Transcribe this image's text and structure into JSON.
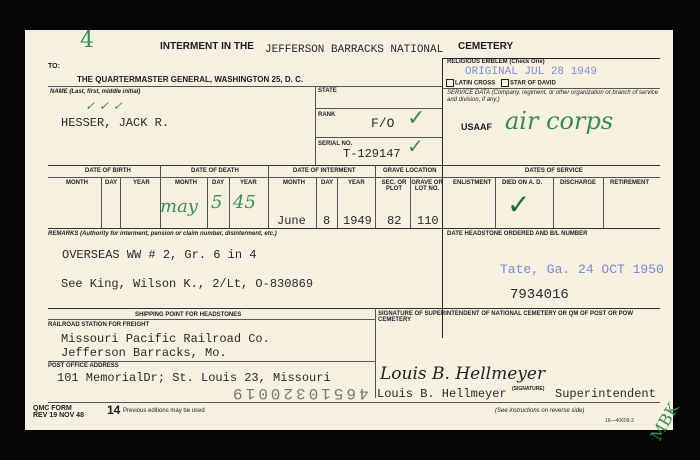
{
  "title": {
    "prefix": "INTERMENT IN THE",
    "cemetery_name": "JEFFERSON BARRACKS NATIONAL",
    "suffix": "CEMETERY",
    "mark": "4"
  },
  "to": {
    "label": "TO:",
    "addressee": "THE QUARTERMASTER GENERAL, WASHINGTON 25, D. C."
  },
  "religious_emblem": {
    "label": "RELIGIOUS EMBLEM (Check One)",
    "options": [
      "LATIN CROSS",
      "STAR OF DAVID"
    ],
    "stamp": "ORIGINAL JUL 28 1949"
  },
  "name": {
    "label": "NAME (Last, first, middle initial)",
    "value": "HESSER, JACK R."
  },
  "state": {
    "label": "STATE"
  },
  "rank": {
    "label": "RANK",
    "value": "F/O"
  },
  "serial": {
    "label": "SERIAL NO.",
    "value": "T-129147"
  },
  "service_data": {
    "label": "SERVICE DATA (Company, regiment, or other organization or branch of service and division, if any.)",
    "value": "USAAF",
    "handwritten": "air corps"
  },
  "dates": {
    "birth": {
      "label": "DATE OF BIRTH",
      "cols": [
        "MONTH",
        "DAY",
        "YEAR"
      ]
    },
    "death": {
      "label": "DATE OF DEATH",
      "cols": [
        "MONTH",
        "DAY",
        "YEAR"
      ],
      "month": "may",
      "day": "5",
      "year": "45"
    },
    "interment": {
      "label": "DATE OF INTERMENT",
      "cols": [
        "MONTH",
        "DAY",
        "YEAR"
      ],
      "month": "June",
      "day": "8",
      "year": "1949"
    },
    "grave": {
      "label": "GRAVE LOCATION",
      "cols": [
        "SEC. OR PLOT",
        "GRAVE OR LOT NO."
      ],
      "section": "82",
      "lot": "110"
    },
    "service": {
      "label": "DATES OF SERVICE",
      "cols": [
        "ENLISTMENT",
        "DIED ON A. D.",
        "DISCHARGE",
        "RETIREMENT"
      ],
      "checked": "DIED ON A. D."
    }
  },
  "remarks": {
    "label": "REMARKS (Authority for interment, pension or claim number, disinterment, etc.)",
    "line1": "OVERSEAS WW # 2, Gr. 6 in 4",
    "line2": "See King, Wilson K., 2/Lt, O-830869"
  },
  "headstone": {
    "label": "DATE HEADSTONE ORDERED AND B/L NUMBER",
    "stamp": "Tate, Ga. 24 OCT 1950",
    "number": "7934016"
  },
  "shipping": {
    "label": "SHIPPING POINT FOR HEADSTONES",
    "railroad_label": "RAILROAD STATION FOR FREIGHT",
    "railroad_line1": "Missouri Pacific Railroad Co.",
    "railroad_line2": "Jefferson Barracks, Mo.",
    "post_office_label": "POST OFFICE ADDRESS",
    "post_office": "101 MemorialDr; St. Louis 23, Missouri"
  },
  "signature": {
    "label": "SIGNATURE OF SUPERINTENDENT OF NATIONAL CEMETERY OR QM OF POST OR POW CEMETERY",
    "signature_script": "Louis B. Hellmeyer",
    "name": "Louis B. Hellmeyer",
    "sig_label": "(SIGNATURE)",
    "title": "Superintendent",
    "initials": "MBK"
  },
  "stamped_number": "46510320019",
  "footer": {
    "form": "QMC FORM",
    "rev": "REV 19 NOV 48",
    "number": "14",
    "note": "Previous editions may be used",
    "instructions": "(See instructions on reverse side)",
    "code": "16—40609-2"
  },
  "colors": {
    "paper": "#f6f0e0",
    "ink_green": "#3f8a52",
    "stamp_blue": "#5a6fd0"
  }
}
